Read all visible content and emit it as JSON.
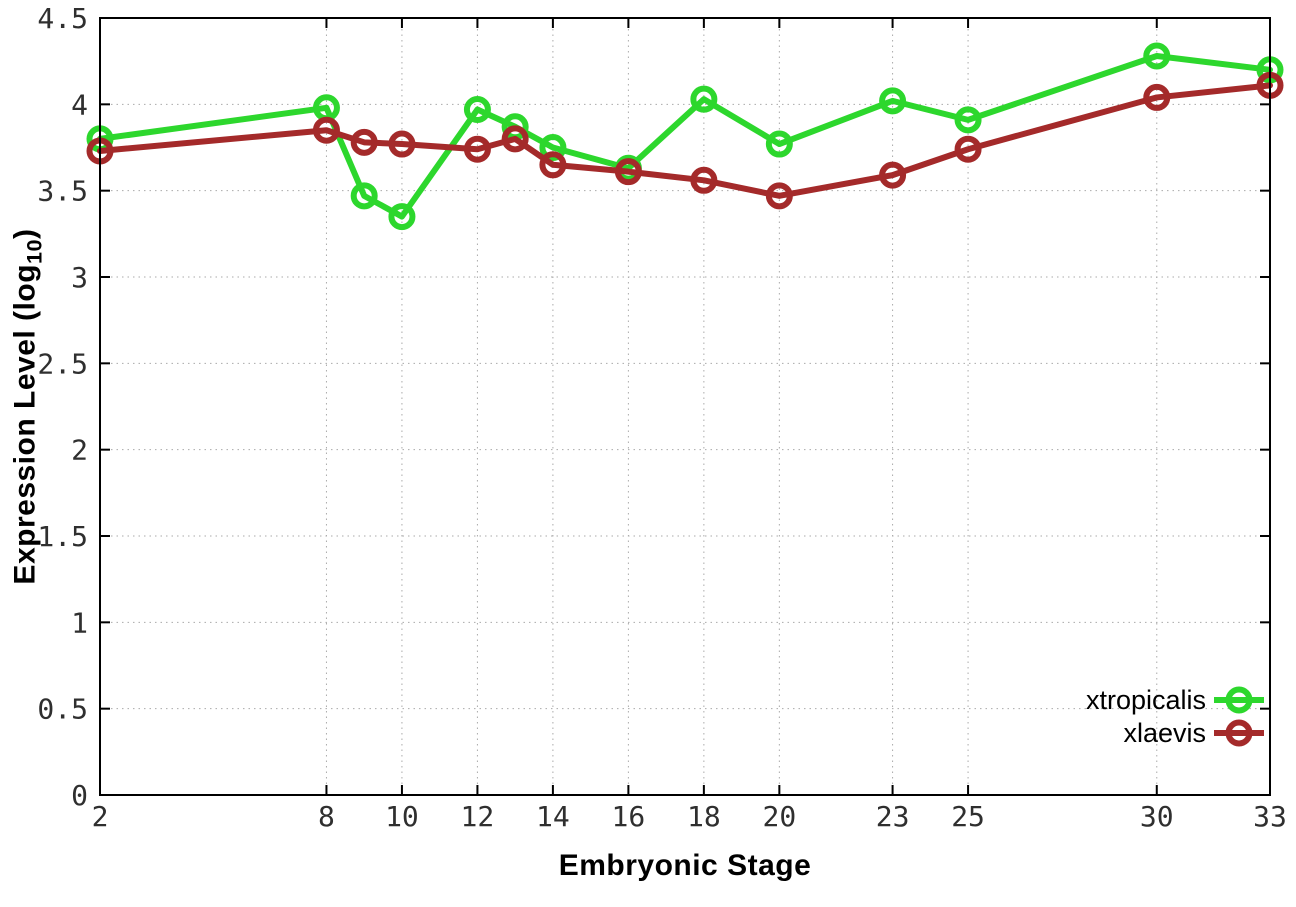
{
  "chart_data": {
    "type": "line",
    "title": "",
    "xlabel": "Embryonic Stage",
    "ylabel": "Expression Level (log10)",
    "ylabel_parts": {
      "pre": "Expression Level (log",
      "sub": "10",
      "post": ")"
    },
    "x": [
      2,
      8,
      9,
      10,
      12,
      13,
      14,
      16,
      18,
      20,
      23,
      25,
      30,
      33
    ],
    "series": [
      {
        "name": "xtropicalis",
        "color": "#2dd72d",
        "values": [
          3.8,
          3.98,
          3.47,
          3.35,
          3.97,
          3.87,
          3.75,
          3.63,
          4.03,
          3.77,
          4.02,
          3.91,
          4.28,
          4.2
        ]
      },
      {
        "name": "xlaevis",
        "color": "#a42a2a",
        "values": [
          3.73,
          3.85,
          3.78,
          3.77,
          3.74,
          3.8,
          3.65,
          3.61,
          3.56,
          3.47,
          3.59,
          3.74,
          4.04,
          4.11
        ]
      }
    ],
    "xticks": [
      2,
      8,
      10,
      12,
      14,
      16,
      18,
      20,
      23,
      25,
      30,
      33
    ],
    "yticks": [
      0,
      0.5,
      1,
      1.5,
      2,
      2.5,
      3,
      3.5,
      4,
      4.5
    ],
    "xlim": [
      2,
      33
    ],
    "ylim": [
      0,
      4.5
    ],
    "grid": true,
    "legend_position": "bottom-right",
    "marker": "open-circle",
    "axis_color": "#000000",
    "grid_color": "#aaaaaa",
    "tick_label_color": "#2f2f2f"
  }
}
